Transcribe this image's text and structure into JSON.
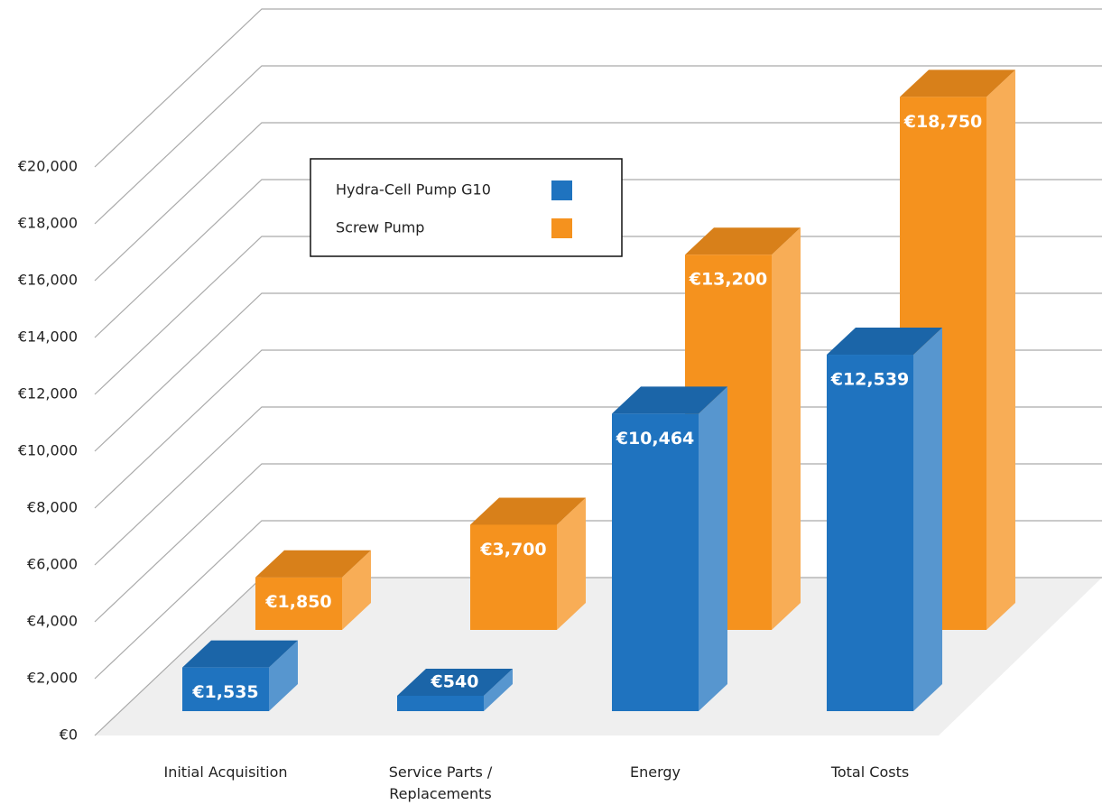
{
  "chart_data": {
    "type": "bar3d",
    "categories": [
      "Initial Acquisition",
      "Service Parts / Replacements",
      "Energy",
      "Total Costs"
    ],
    "series": [
      {
        "name": "Hydra-Cell Pump G10",
        "color": "#1f73bf",
        "values": [
          1535,
          540,
          10464,
          12539
        ],
        "value_labels": [
          "€1,535",
          "€540",
          "€10,464",
          "€12,539"
        ]
      },
      {
        "name": "Screw Pump",
        "color": "#f5921e",
        "values": [
          1850,
          3700,
          13200,
          18750
        ],
        "value_labels": [
          "€1,850",
          "€3,700",
          "€13,200",
          "€18,750"
        ]
      }
    ],
    "ylim": [
      0,
      20000
    ],
    "yticks": [
      {
        "value": 0,
        "label": "€0"
      },
      {
        "value": 2000,
        "label": "€2,000"
      },
      {
        "value": 4000,
        "label": "€4,000"
      },
      {
        "value": 6000,
        "label": "€6,000"
      },
      {
        "value": 8000,
        "label": "€8,000"
      },
      {
        "value": 10000,
        "label": "€10,000"
      },
      {
        "value": 12000,
        "label": "€12,000"
      },
      {
        "value": 14000,
        "label": "€14,000"
      },
      {
        "value": 16000,
        "label": "€16,000"
      },
      {
        "value": 18000,
        "label": "€18,000"
      },
      {
        "value": 20000,
        "label": "€20,000"
      }
    ],
    "grid": true
  }
}
